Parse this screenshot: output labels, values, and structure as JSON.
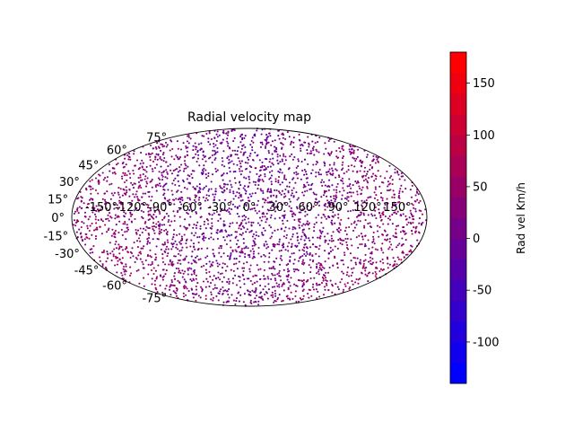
{
  "chart_data": {
    "type": "scatter",
    "projection": "mollweide",
    "title": "Radial velocity map",
    "xlabel": "",
    "ylabel": "",
    "x_tick_labels": [
      "-150°",
      "-120°",
      "-90°",
      "-60°",
      "-30°",
      "0°",
      "30°",
      "60°",
      "90°",
      "120°",
      "150°"
    ],
    "y_tick_labels": [
      "-75°",
      "-60°",
      "-45°",
      "-30°",
      "-15°",
      "0°",
      "15°",
      "30°",
      "45°",
      "60°",
      "75°"
    ],
    "xlim_deg": [
      -180,
      180
    ],
    "ylim_deg": [
      -90,
      90
    ],
    "grid": false,
    "marker_color_scale": [
      "#0000ff",
      "#ff0000"
    ],
    "point_count_approx": 3000,
    "colorbar": {
      "label": "Rad vel Km/h",
      "ticks": [
        "-100",
        "-50",
        "0",
        "50",
        "100",
        "150"
      ],
      "tick_values": [
        -100,
        -50,
        0,
        50,
        100,
        150
      ],
      "range": [
        -140,
        180
      ],
      "levels": 16,
      "placement": "right"
    }
  }
}
